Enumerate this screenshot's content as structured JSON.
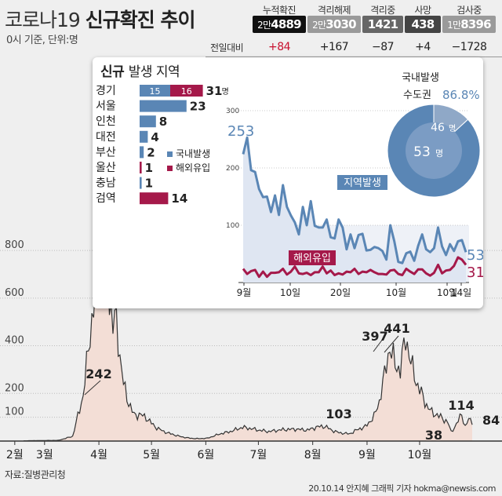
{
  "header": {
    "title_plain": "코로나19",
    "title_bold": "신규확진 추이",
    "subtitle": "0시 기준, 단위:명"
  },
  "stats": {
    "delta_label": "전일대비",
    "items": [
      {
        "label": "누적확진",
        "value_prefix": "2만",
        "value": "4889",
        "delta": "+84",
        "color": "#111111",
        "delta_color": "#c8102e"
      },
      {
        "label": "격리해제",
        "value_prefix": "2만",
        "value": "3030",
        "delta": "+167",
        "color": "#9a9a9a",
        "delta_color": "#222222"
      },
      {
        "label": "격리중",
        "value_prefix": "",
        "value": "1421",
        "delta": "−87",
        "color": "#666666",
        "delta_color": "#222222"
      },
      {
        "label": "사망",
        "value_prefix": "",
        "value": "438",
        "delta": "+4",
        "color": "#444444",
        "delta_color": "#222222"
      },
      {
        "label": "검사중",
        "value_prefix": "1만",
        "value": "8396",
        "delta": "−1728",
        "color": "#9a9a9a",
        "delta_color": "#222222"
      }
    ]
  },
  "panel": {
    "title_bold": "신규",
    "title_rest": "발생 지역"
  },
  "colors": {
    "domestic": "#5a86b5",
    "overseas": "#a5194a",
    "area": "#f3ded6",
    "area_line": "#333333"
  },
  "chart_data": [
    {
      "type": "bar",
      "orientation": "horizontal",
      "stacked": true,
      "categories": [
        "경기",
        "서울",
        "인천",
        "대전",
        "부산",
        "울산",
        "충남",
        "검역"
      ],
      "series": [
        {
          "name": "국내발생",
          "values": [
            15,
            23,
            8,
            4,
            2,
            0,
            1,
            0
          ]
        },
        {
          "name": "해외유입",
          "values": [
            16,
            0,
            0,
            0,
            0,
            1,
            0,
            14
          ]
        }
      ],
      "totals": [
        31,
        23,
        8,
        4,
        2,
        1,
        1,
        14
      ],
      "total_labels": [
        "31",
        "23",
        "8",
        "4",
        "2",
        "1",
        "1",
        "14"
      ],
      "unit_label": "명",
      "inner_labels": [
        {
          "row": 0,
          "series": 0,
          "text": "15"
        },
        {
          "row": 0,
          "series": 1,
          "text": "16"
        }
      ],
      "legend": [
        "국내발생",
        "해외유입"
      ],
      "legend_position": "right"
    },
    {
      "type": "pie",
      "title_line1": "국내발생",
      "title_line2": "수도권",
      "percent_label": "86.8%",
      "slices": [
        {
          "value": 46,
          "label": "46",
          "unit": "명"
        },
        {
          "value": 7,
          "label": ""
        }
      ],
      "total_label": "53",
      "total_unit": "명"
    },
    {
      "type": "line",
      "yticks": [
        100,
        200,
        300
      ],
      "ylim": [
        0,
        300
      ],
      "xticks": [
        "9월",
        "10일",
        "20일",
        "10월",
        "10일",
        "14일"
      ],
      "series": [
        {
          "name": "지역발생",
          "label": "지역발생",
          "values": [
            224,
            253,
            196,
            193,
            163,
            149,
            150,
            123,
            152,
            118,
            170,
            132,
            117,
            105,
            84,
            132,
            100,
            142,
            99,
            96,
            96,
            110,
            79,
            77,
            110,
            96,
            58,
            84,
            60,
            83,
            85,
            56,
            57,
            62,
            60,
            55,
            40,
            100,
            72,
            36,
            34,
            51,
            54,
            38,
            64,
            84,
            58,
            53,
            60,
            96,
            63,
            48,
            67,
            55,
            72,
            74,
            53
          ],
          "start_label": "253",
          "end_label": "53"
        },
        {
          "name": "해외유입",
          "label": "해외유입",
          "values": [
            24,
            15,
            20,
            22,
            10,
            19,
            10,
            17,
            17,
            18,
            24,
            14,
            19,
            28,
            16,
            15,
            17,
            13,
            18,
            18,
            28,
            16,
            21,
            13,
            16,
            14,
            19,
            18,
            24,
            15,
            19,
            18,
            22,
            18,
            15,
            15,
            14,
            21,
            22,
            15,
            13,
            24,
            19,
            15,
            23,
            23,
            16,
            12,
            17,
            31,
            16,
            21,
            22,
            29,
            44,
            40,
            31
          ],
          "end_label": "31"
        }
      ]
    },
    {
      "type": "area",
      "yticks": [
        100,
        200,
        400,
        600,
        800
      ],
      "ylim": [
        0,
        909
      ],
      "xticks": [
        "2월",
        "3월",
        "4월",
        "5월",
        "6월",
        "7월",
        "8월",
        "9월",
        "10월"
      ],
      "annotations": [
        {
          "text": "242",
          "value": 242
        },
        {
          "text": "103",
          "value": 103
        },
        {
          "text": "397",
          "value": 397
        },
        {
          "text": "441",
          "value": 441
        },
        {
          "text": "38",
          "value": 38
        },
        {
          "text": "114",
          "value": 114
        },
        {
          "text": "84",
          "value": 84
        }
      ]
    }
  ],
  "footer": {
    "source": "자료:질병관리청",
    "credit": "20.10.14 안지혜 그래픽 기자 hokma@newsis.com"
  }
}
